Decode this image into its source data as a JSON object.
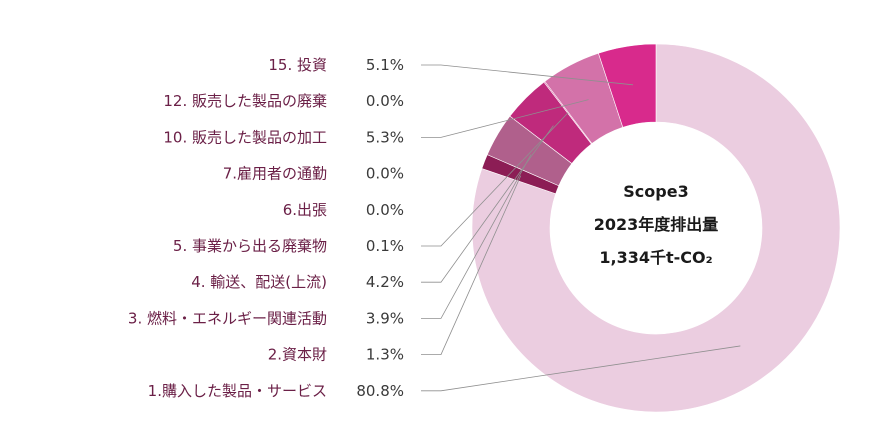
{
  "chart_data": {
    "type": "pie",
    "variant": "donut",
    "center_text": {
      "line1": "Scope3",
      "line2": "2023年度排出量",
      "line3": "1,334千t-CO₂"
    },
    "categories": [
      "1.購入した製品・サービス",
      "2.資本財",
      "3. 燃料・エネルギー関連活動",
      "4. 輸送、配送(上流)",
      "5. 事業から出る廃棄物",
      "6.出張",
      "7.雇用者の通勤",
      "10. 販売した製品の加工",
      "12. 販売した製品の廃棄",
      "15. 投資"
    ],
    "values": [
      80.8,
      1.3,
      3.9,
      4.2,
      0.1,
      0.0,
      0.0,
      5.3,
      0.0,
      5.1
    ],
    "value_labels": [
      "80.8%",
      "1.3%",
      "3.9%",
      "4.2%",
      "0.1%",
      "0.0%",
      "0.0%",
      "5.3%",
      "0.0%",
      "5.1%"
    ],
    "colors": [
      "#ebcde0",
      "#8c1d55",
      "#b0608c",
      "#bf2a7c",
      "#d64a98",
      "#d64a98",
      "#d64a98",
      "#d372a9",
      "#d64a98",
      "#d82a8c"
    ],
    "legend_order": [
      9,
      8,
      7,
      6,
      5,
      4,
      3,
      2,
      1,
      0
    ],
    "label_color": "#6b2047",
    "value_color": "#3a3a3a",
    "leader_color": "#8f8f8f"
  }
}
